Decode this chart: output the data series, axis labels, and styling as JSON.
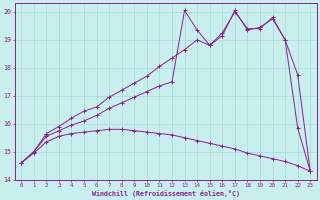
{
  "xlabel": "Windchill (Refroidissement éolien,°C)",
  "xlim": [
    -0.5,
    23.5
  ],
  "ylim": [
    14,
    20.3
  ],
  "yticks": [
    14,
    15,
    16,
    17,
    18,
    19,
    20
  ],
  "xticks": [
    0,
    1,
    2,
    3,
    4,
    5,
    6,
    7,
    8,
    9,
    10,
    11,
    12,
    13,
    14,
    15,
    16,
    17,
    18,
    19,
    20,
    21,
    22,
    23
  ],
  "bg_color": "#c8eeee",
  "grid_color": "#a8d8d8",
  "line_color": "#882288",
  "line1_x": [
    0,
    1,
    2,
    3,
    4,
    5,
    6,
    7,
    8,
    9,
    10,
    11,
    12,
    13,
    14,
    15,
    16,
    17,
    18,
    19,
    20,
    21,
    22,
    23
  ],
  "line1_y": [
    14.6,
    15.0,
    15.55,
    15.75,
    15.95,
    16.1,
    16.3,
    16.55,
    16.75,
    16.95,
    17.15,
    17.35,
    17.5,
    20.05,
    19.35,
    18.8,
    19.25,
    20.0,
    19.4,
    19.4,
    19.8,
    19.0,
    15.85,
    14.3
  ],
  "line2_x": [
    0,
    1,
    2,
    3,
    4,
    5,
    6,
    7,
    8,
    9,
    10,
    11,
    12,
    13,
    14,
    15,
    16,
    17,
    18,
    19,
    20,
    21,
    22,
    23
  ],
  "line2_y": [
    14.6,
    15.0,
    15.65,
    15.9,
    16.2,
    16.45,
    16.6,
    16.95,
    17.2,
    17.45,
    17.7,
    18.05,
    18.35,
    18.65,
    19.0,
    18.8,
    19.15,
    20.05,
    19.35,
    19.45,
    19.75,
    19.0,
    17.75,
    14.3
  ],
  "line3_x": [
    0,
    1,
    2,
    3,
    4,
    5,
    6,
    7,
    8,
    9,
    10,
    11,
    12,
    13,
    14,
    15,
    16,
    17,
    18,
    19,
    20,
    21,
    22,
    23
  ],
  "line3_y": [
    14.6,
    14.95,
    15.35,
    15.55,
    15.65,
    15.7,
    15.75,
    15.8,
    15.8,
    15.75,
    15.7,
    15.65,
    15.6,
    15.5,
    15.4,
    15.3,
    15.2,
    15.1,
    14.95,
    14.85,
    14.75,
    14.65,
    14.5,
    14.3
  ]
}
